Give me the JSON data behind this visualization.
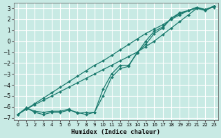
{
  "xlabel": "Humidex (Indice chaleur)",
  "ylabel": "",
  "xlim": [
    -0.5,
    23.5
  ],
  "ylim": [
    -7.2,
    3.5
  ],
  "yticks": [
    3,
    2,
    1,
    0,
    -1,
    -2,
    -3,
    -4,
    -5,
    -6,
    -7
  ],
  "xticks": [
    0,
    1,
    2,
    3,
    4,
    5,
    6,
    7,
    8,
    9,
    10,
    11,
    12,
    13,
    14,
    15,
    16,
    17,
    18,
    19,
    20,
    21,
    22,
    23
  ],
  "bg_color": "#c8eae4",
  "grid_color": "#ffffff",
  "line_color": "#1a7a6e",
  "lines": [
    {
      "x": [
        0,
        1,
        2,
        3,
        4,
        5,
        6,
        7,
        8,
        9,
        10,
        11,
        12,
        13,
        14,
        15,
        16,
        17,
        18,
        19,
        20,
        21,
        22,
        23
      ],
      "y": [
        -6.7,
        -6.2,
        -5.7,
        -5.2,
        -4.7,
        -4.2,
        -3.7,
        -3.2,
        -2.7,
        -2.2,
        -1.8,
        -1.3,
        -0.8,
        -0.3,
        0.2,
        0.7,
        1.1,
        1.5,
        2.0,
        2.4,
        2.8,
        3.1,
        2.9,
        3.2
      ]
    },
    {
      "x": [
        0,
        1,
        2,
        3,
        4,
        5,
        6,
        7,
        8,
        9,
        10,
        11,
        12,
        13,
        14,
        15,
        16,
        17,
        18,
        19,
        20,
        21,
        22,
        23
      ],
      "y": [
        -6.7,
        -6.2,
        -5.8,
        -5.4,
        -5.0,
        -4.6,
        -4.2,
        -3.8,
        -3.4,
        -3.0,
        -2.6,
        -2.2,
        -1.8,
        -1.4,
        -1.0,
        -0.5,
        0.0,
        0.6,
        1.2,
        1.8,
        2.4,
        3.0,
        2.8,
        3.2
      ]
    },
    {
      "x": [
        0,
        1,
        2,
        3,
        4,
        5,
        6,
        7,
        8,
        9,
        10,
        11,
        12,
        13,
        14,
        15,
        16,
        17,
        18,
        19,
        20,
        21,
        22,
        23
      ],
      "y": [
        -6.7,
        -6.1,
        -6.5,
        -6.7,
        -6.5,
        -6.5,
        -6.3,
        -6.5,
        -6.7,
        -6.5,
        -5.0,
        -3.3,
        -2.5,
        -2.3,
        -1.0,
        -0.3,
        0.7,
        1.2,
        2.1,
        2.6,
        2.8,
        3.0,
        2.9,
        3.1
      ]
    },
    {
      "x": [
        0,
        1,
        2,
        3,
        4,
        5,
        6,
        7,
        8,
        9,
        10,
        11,
        12,
        13,
        14,
        15,
        16,
        17,
        18,
        19,
        20,
        21,
        22,
        23
      ],
      "y": [
        -6.7,
        -6.1,
        -6.4,
        -6.5,
        -6.4,
        -6.4,
        -6.2,
        -6.6,
        -6.5,
        -6.5,
        -4.4,
        -3.0,
        -2.2,
        -2.2,
        -1.1,
        0.0,
        0.9,
        1.3,
        2.1,
        2.5,
        2.8,
        3.1,
        2.8,
        3.2
      ]
    }
  ]
}
